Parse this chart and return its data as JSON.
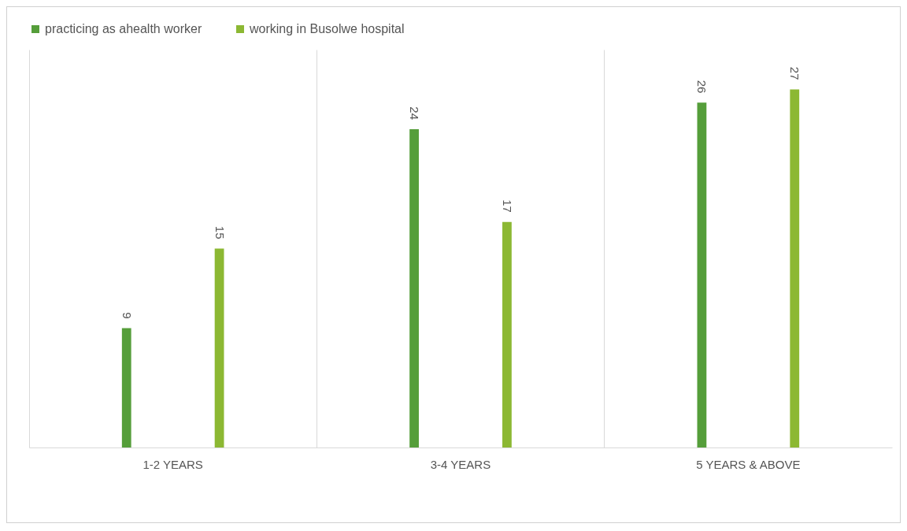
{
  "chart_data": {
    "type": "bar",
    "categories": [
      "1-2 YEARS",
      "3-4 YEARS",
      "5 YEARS & ABOVE"
    ],
    "series": [
      {
        "name": "practicing as ahealth worker",
        "color": "#559e3a",
        "values": [
          9,
          24,
          26
        ]
      },
      {
        "name": "working in Busolwe hospital",
        "color": "#8cb833",
        "values": [
          15,
          17,
          27
        ]
      }
    ],
    "ylim": [
      0,
      30
    ],
    "tick_labels": "x",
    "grid": "x",
    "legend": "top",
    "data_labels": true
  }
}
